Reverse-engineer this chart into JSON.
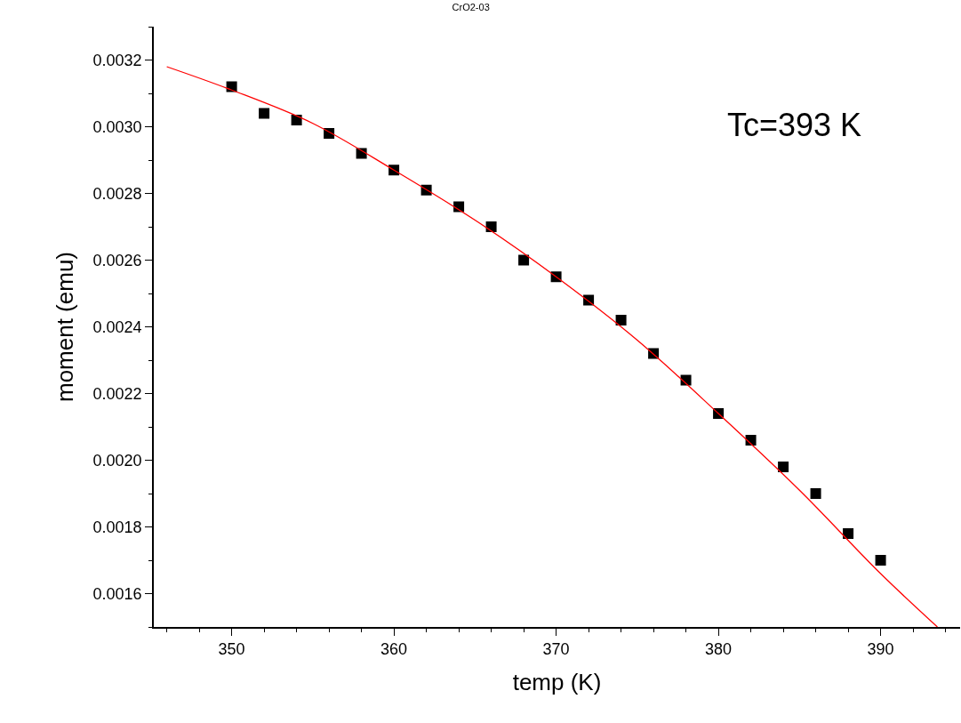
{
  "chart_data": {
    "type": "scatter",
    "title": "CrO2-03",
    "xlabel": "temp (K)",
    "ylabel": "moment (emu)",
    "annotations": [
      "Tc=393 K"
    ],
    "x": [
      350,
      352,
      354,
      356,
      358,
      360,
      362,
      364,
      366,
      368,
      370,
      372,
      374,
      376,
      378,
      380,
      382,
      384,
      386,
      388,
      390
    ],
    "series": [
      {
        "color": "#000000",
        "marker": "square",
        "values": [
          0.00312,
          0.00304,
          0.00302,
          0.00298,
          0.00292,
          0.00287,
          0.00281,
          0.00276,
          0.0027,
          0.0026,
          0.00255,
          0.00248,
          0.00242,
          0.00232,
          0.00224,
          0.00214,
          0.00206,
          0.00198,
          0.0019,
          0.00178,
          0.0017
        ]
      },
      {
        "type": "line",
        "color": "#ff0000",
        "marker": "none",
        "x": [
          346,
          350,
          355,
          360,
          365,
          370,
          375,
          380,
          385,
          390,
          393.5
        ],
        "values": [
          0.00318,
          0.00311,
          0.00301,
          0.00287,
          0.00272,
          0.00255,
          0.00236,
          0.00214,
          0.00191,
          0.00166,
          0.0015
        ]
      }
    ],
    "xlim": [
      345.2,
      394.9
    ],
    "ylim": [
      0.0015,
      0.0033
    ],
    "xticks": [
      350,
      360,
      370,
      380,
      390
    ],
    "yticks": [
      {
        "value": 0.0016,
        "label": "0.0016"
      },
      {
        "value": 0.0018,
        "label": "0.0018"
      },
      {
        "value": 0.002,
        "label": "0.0020"
      },
      {
        "value": 0.0022,
        "label": "0.0022"
      },
      {
        "value": 0.0024,
        "label": "0.0024"
      },
      {
        "value": 0.0026,
        "label": "0.0026"
      },
      {
        "value": 0.0028,
        "label": "0.0028"
      },
      {
        "value": 0.003,
        "label": "0.0030"
      },
      {
        "value": 0.0032,
        "label": "0.0032"
      }
    ],
    "grid": false
  }
}
